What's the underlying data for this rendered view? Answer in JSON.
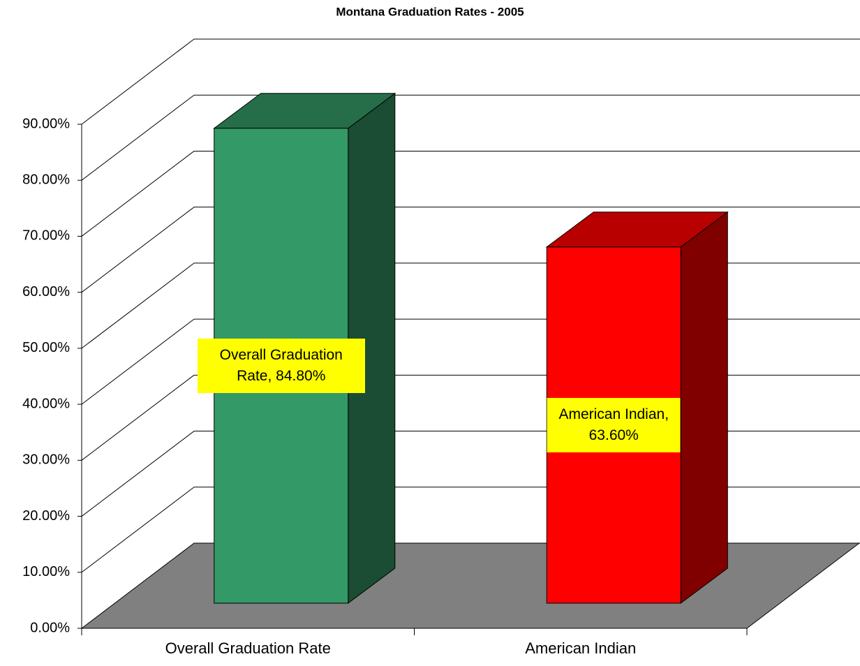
{
  "chart_data": {
    "type": "bar3d",
    "title": "Montana Graduation Rates - 2005",
    "categories": [
      "Overall Graduation Rate",
      "American Indian"
    ],
    "values": [
      84.8,
      63.6
    ],
    "value_labels": [
      "Overall Graduation Rate, 84.80%",
      "American Indian, 63.60%"
    ],
    "colors": [
      "#339966",
      "#ff0000"
    ],
    "ylim": [
      0,
      90
    ],
    "yticks": [
      {
        "value": 0,
        "label": "0.00%"
      },
      {
        "value": 10,
        "label": "10.00%"
      },
      {
        "value": 20,
        "label": "20.00%"
      },
      {
        "value": 30,
        "label": "30.00%"
      },
      {
        "value": 40,
        "label": "40.00%"
      },
      {
        "value": 50,
        "label": "50.00%"
      },
      {
        "value": 60,
        "label": "60.00%"
      },
      {
        "value": 70,
        "label": "70.00%"
      },
      {
        "value": 80,
        "label": "80.00%"
      },
      {
        "value": 90,
        "label": "90.00%"
      }
    ],
    "grid": true
  }
}
